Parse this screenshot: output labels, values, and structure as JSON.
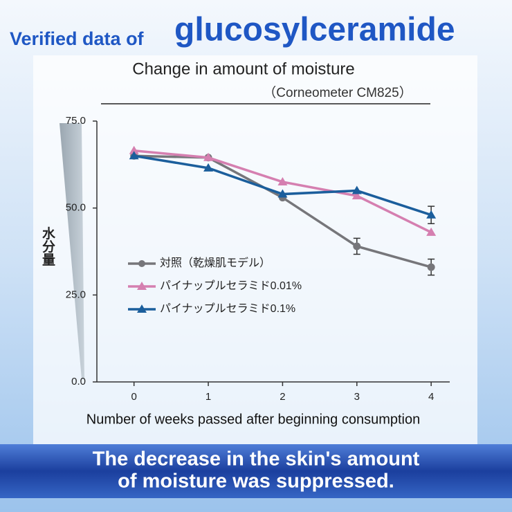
{
  "header": {
    "prefix": "Verified data of",
    "highlight": "glucosylceramide"
  },
  "chart_data": {
    "type": "line",
    "title": "Change in amount of moisture",
    "subtitle": "（Corneometer CM825）",
    "y_label": "水分量",
    "x_label": "Number of weeks passed after beginning consumption",
    "x": [
      0,
      1,
      2,
      3,
      4
    ],
    "xlim": [
      -0.5,
      4.25
    ],
    "xticks": [
      0,
      1,
      2,
      3,
      4
    ],
    "ylim": [
      0,
      75
    ],
    "yticks": [
      {
        "value": 0,
        "label": "0.0"
      },
      {
        "value": 25,
        "label": "25.0"
      },
      {
        "value": 50,
        "label": "50.0"
      },
      {
        "value": 75,
        "label": "75.0"
      }
    ],
    "legend": "left",
    "series": [
      {
        "name": "対照（乾燥肌モデル）",
        "color": "#76767a",
        "marker": "circle",
        "values": [
          65,
          64.5,
          53,
          39,
          33
        ],
        "errors": [
          null,
          null,
          null,
          2.3,
          2.3
        ]
      },
      {
        "name": "パイナップルセラミド0.01%",
        "color": "#d57fb0",
        "marker": "triangle",
        "values": [
          66.5,
          64.5,
          57.5,
          53.5,
          43
        ]
      },
      {
        "name": "パイナップルセラミド0.1%",
        "color": "#1b5e9c",
        "marker": "triangle",
        "values": [
          65,
          61.5,
          54,
          55,
          48
        ],
        "errors": [
          null,
          null,
          null,
          null,
          2.5
        ]
      }
    ]
  },
  "banner": {
    "lines": [
      "The decrease in the skin's amount",
      "of moisture was suppressed."
    ]
  }
}
